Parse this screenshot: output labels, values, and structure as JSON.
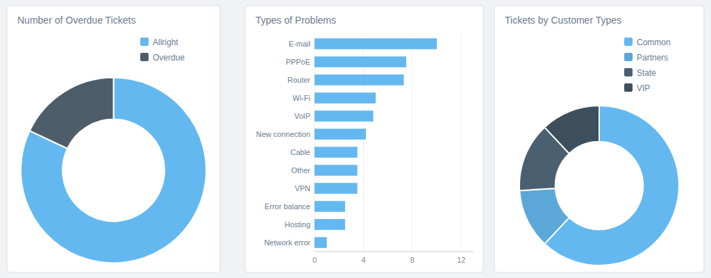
{
  "chart_data": [
    {
      "type": "donut",
      "title": "Number of Overdue Tickets",
      "categories": [
        "Allright",
        "Overdue"
      ],
      "values": [
        82,
        18
      ],
      "colors": [
        "#64b8f0",
        "#4d5d6a"
      ],
      "legend": "upper right"
    },
    {
      "type": "bar",
      "title": "Types of Problems",
      "orientation": "horizontal",
      "categories": [
        "E-mail",
        "PPPoE",
        "Router",
        "Wi-Fi",
        "VoIP",
        "New connection",
        "Cable",
        "Other",
        "VPN",
        "Error balance",
        "Hosting",
        "Network error"
      ],
      "values": [
        10,
        7.5,
        7.3,
        5.0,
        4.8,
        4.2,
        3.5,
        3.5,
        3.5,
        2.5,
        2.5,
        1.0
      ],
      "color": "#64b8f0",
      "xlim": [
        0,
        13
      ],
      "xticks": [
        0,
        4,
        8,
        12
      ],
      "grid": true
    },
    {
      "type": "donut",
      "title": "Tickets by Customer Types",
      "categories": [
        "Common",
        "Partners",
        "State",
        "VIP"
      ],
      "values": [
        62,
        12,
        14,
        12
      ],
      "colors": [
        "#64b8f0",
        "#5ba8d8",
        "#4a6070",
        "#3d4f5c"
      ],
      "legend": "upper right"
    }
  ]
}
